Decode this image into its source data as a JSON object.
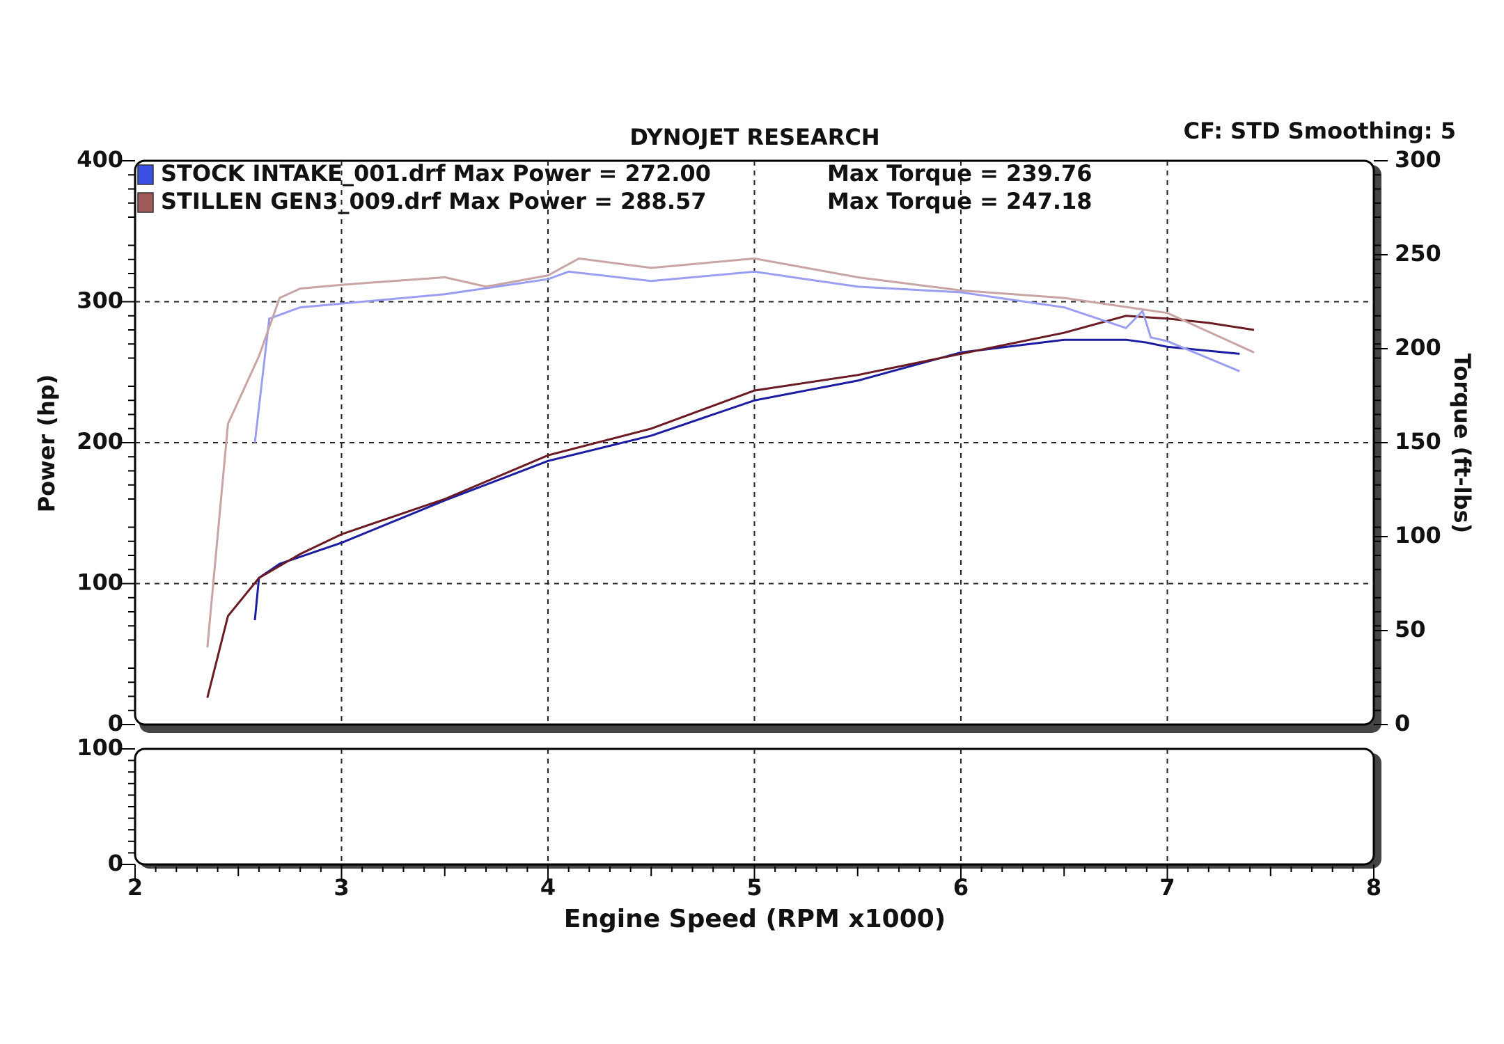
{
  "chart_data": {
    "type": "line",
    "title": "DYNOJET RESEARCH",
    "subtitle": "CF: STD  Smoothing: 5",
    "x_label": "Engine Speed (RPM x1000)",
    "y_label": "Power (hp)",
    "y2_label": "Torque (ft-lbs)",
    "xlim": [
      2,
      8
    ],
    "xticks": [
      2,
      3,
      4,
      5,
      6,
      7,
      8
    ],
    "ylim": [
      0,
      400
    ],
    "yticks": [
      0,
      100,
      200,
      300,
      400
    ],
    "y2lim": [
      0,
      300
    ],
    "y2ticks": [
      0,
      50,
      100,
      150,
      200,
      250,
      300
    ],
    "grid": true,
    "legend": [
      {
        "name": "STOCK INTAKE_001.drf Max Power = 272.00",
        "torque": "Max Torque = 239.76",
        "color": "#3b4fe0"
      },
      {
        "name": "STILLEN GEN3_009.drf Max Power = 288.57",
        "torque": "Max Torque = 247.18",
        "color": "#a05a5a"
      }
    ],
    "series": [
      {
        "color": "#1c1ca0",
        "x": [
          2.58,
          2.6,
          2.7,
          3.0,
          3.5,
          4.0,
          4.5,
          5.0,
          5.5,
          6.0,
          6.5,
          6.8,
          6.9,
          7.0,
          7.35
        ],
        "values": [
          74,
          104,
          114,
          129,
          159,
          187,
          205,
          230,
          244,
          264,
          273,
          273,
          271,
          268,
          263
        ]
      },
      {
        "color": "#6a1a22",
        "x": [
          2.35,
          2.45,
          2.6,
          2.8,
          3.0,
          3.5,
          4.0,
          4.5,
          5.0,
          5.5,
          6.0,
          6.5,
          6.8,
          7.0,
          7.2,
          7.42
        ],
        "values": [
          19,
          77,
          104,
          121,
          135,
          160,
          191,
          210,
          237,
          248,
          263,
          278,
          290,
          288,
          285,
          280
        ]
      },
      {
        "color": "#9a9ef0",
        "axis": "y2",
        "x": [
          2.58,
          2.65,
          2.8,
          3.0,
          3.5,
          4.0,
          4.1,
          4.5,
          5.0,
          5.5,
          6.0,
          6.5,
          6.8,
          6.88,
          6.92,
          7.0,
          7.35
        ],
        "values": [
          150,
          216,
          222,
          224,
          229,
          237,
          241,
          236,
          241,
          233,
          230,
          222,
          211,
          220,
          206,
          204,
          188
        ]
      },
      {
        "color": "#c8a4a4",
        "axis": "y2",
        "x": [
          2.35,
          2.45,
          2.6,
          2.7,
          2.8,
          3.0,
          3.5,
          3.7,
          4.0,
          4.15,
          4.5,
          5.0,
          5.5,
          6.0,
          6.5,
          7.0,
          7.42
        ],
        "values": [
          41,
          160,
          196,
          227,
          232,
          234,
          238,
          233,
          239,
          248,
          243,
          248,
          238,
          231,
          227,
          219,
          198
        ]
      }
    ],
    "lower_panel": {
      "ylim": [
        0,
        100
      ],
      "yticks": [
        0,
        100
      ]
    }
  }
}
